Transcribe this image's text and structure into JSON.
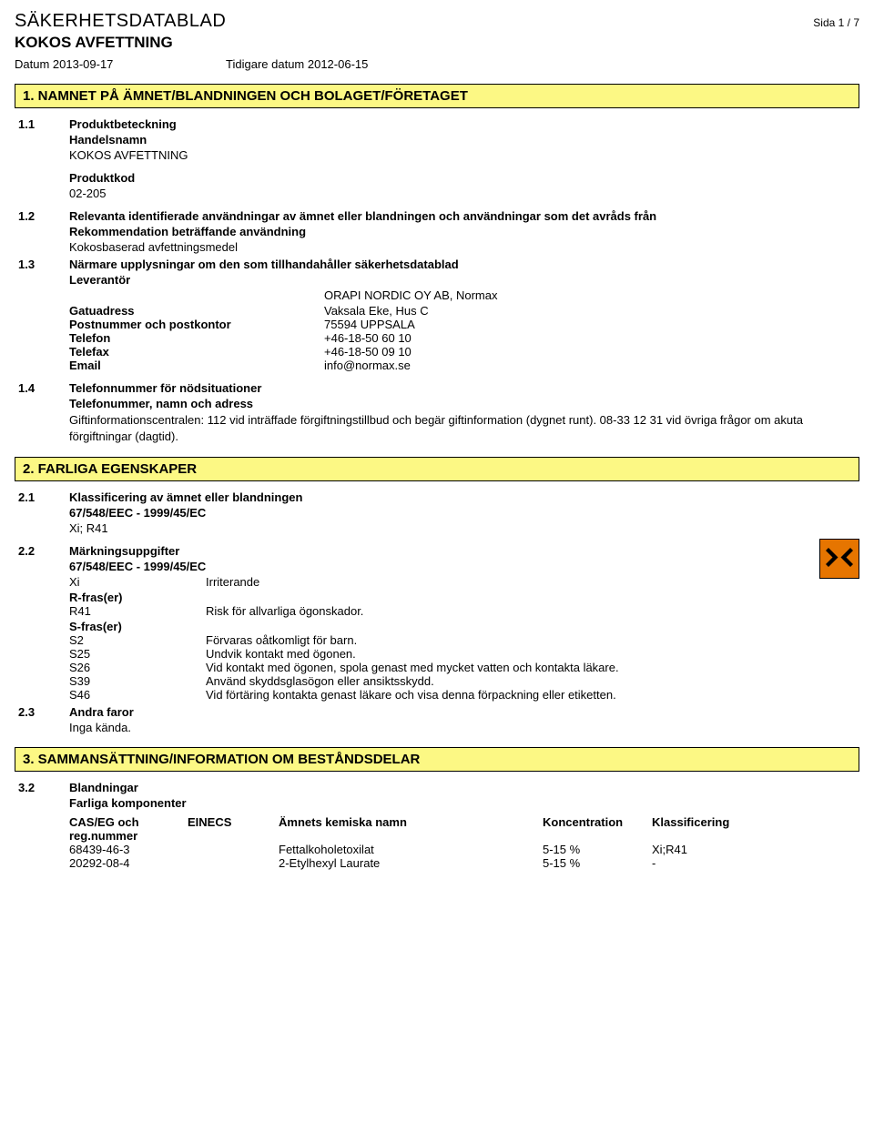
{
  "colors": {
    "section_bg": "#fcf884",
    "section_border": "#000000",
    "hazard_bg": "#e67500",
    "hazard_border": "#000000",
    "text": "#000000",
    "page_bg": "#ffffff"
  },
  "header": {
    "doc_title": "SÄKERHETSDATABLAD",
    "page_label": "Sida  1 / 7",
    "product_name": "KOKOS AVFETTNING",
    "date_label": "Datum 2013-09-17",
    "prev_date_label": "Tidigare datum 2012-06-15"
  },
  "section1": {
    "title": "1. NAMNET PÅ ÄMNET/BLANDNINGEN OCH BOLAGET/FÖRETAGET",
    "s11": {
      "num": "1.1",
      "heading": "Produktbeteckning",
      "tradename_label": "Handelsnamn",
      "tradename": "KOKOS AVFETTNING",
      "code_label": "Produktkod",
      "code": "02-205"
    },
    "s12": {
      "num": "1.2",
      "heading": "Relevanta identifierade användningar av ämnet eller blandningen och användningar som det avråds från",
      "rec_label": "Rekommendation beträffande användning",
      "rec_text": "Kokosbaserad avfettningsmedel"
    },
    "s13": {
      "num": "1.3",
      "heading": "Närmare upplysningar om den som tillhandahåller säkerhetsdatablad",
      "supplier_label": "Leverantör",
      "supplier": "ORAPI NORDIC OY AB, Normax",
      "rows": [
        {
          "k": "Gatuadress",
          "v": "Vaksala Eke, Hus C"
        },
        {
          "k": "Postnummer och postkontor",
          "v": "75594 UPPSALA"
        },
        {
          "k": "Telefon",
          "v": "+46-18-50 60 10"
        },
        {
          "k": "Telefax",
          "v": "+46-18-50 09 10"
        },
        {
          "k": "Email",
          "v": "info@normax.se"
        }
      ]
    },
    "s14": {
      "num": "1.4",
      "heading": "Telefonnummer för nödsituationer",
      "sub_label": "Telefonummer, namn och adress",
      "text": "Giftinformationscentralen: 112 vid inträffade förgiftningstillbud och begär giftinformation (dygnet runt). 08-33 12 31 vid övriga frågor om akuta förgiftningar (dagtid)."
    }
  },
  "section2": {
    "title": "2. FARLIGA EGENSKAPER",
    "s21": {
      "num": "2.1",
      "heading": "Klassificering av ämnet eller blandningen",
      "reg": "67/548/EEC - 1999/45/EC",
      "class": "Xi; R41"
    },
    "s22": {
      "num": "2.2",
      "heading": "Märkningsuppgifter",
      "reg": "67/548/EEC - 1999/45/EC",
      "xi_code": "Xi",
      "xi_text": "Irriterande",
      "r_label": "R-fras(er)",
      "r_rows": [
        {
          "k": "R41",
          "v": "Risk för allvarliga ögonskador."
        }
      ],
      "s_label": "S-fras(er)",
      "s_rows": [
        {
          "k": "S2",
          "v": "Förvaras oåtkomligt för barn."
        },
        {
          "k": "S25",
          "v": "Undvik kontakt med ögonen."
        },
        {
          "k": "S26",
          "v": "Vid kontakt med ögonen, spola genast med mycket vatten och kontakta läkare."
        },
        {
          "k": "S39",
          "v": "Använd skyddsglasögon eller ansiktsskydd."
        },
        {
          "k": "S46",
          "v": "Vid förtäring kontakta genast läkare och visa denna förpackning eller etiketten."
        }
      ]
    },
    "s23": {
      "num": "2.3",
      "heading": "Andra faror",
      "text": "Inga kända."
    }
  },
  "section3": {
    "title": "3. SAMMANSÄTTNING/INFORMATION OM BESTÅNDSDELAR",
    "s32": {
      "num": "3.2",
      "heading": "Blandningar",
      "sub": "Farliga komponenter",
      "cols": {
        "c1a": "CAS/EG och",
        "c1b": "reg.nummer",
        "c2": "EINECS",
        "c3": "Ämnets kemiska namn",
        "c4": "Koncentration",
        "c5": "Klassificering"
      },
      "rows": [
        {
          "c1": "68439-46-3",
          "c2": "",
          "c3": "Fettalkoholetoxilat",
          "c4": "5-15 %",
          "c5": "Xi;R41"
        },
        {
          "c1": "20292-08-4",
          "c2": "",
          "c3": "2-Etylhexyl Laurate",
          "c4": "5-15 %",
          "c5": "-"
        }
      ]
    }
  }
}
